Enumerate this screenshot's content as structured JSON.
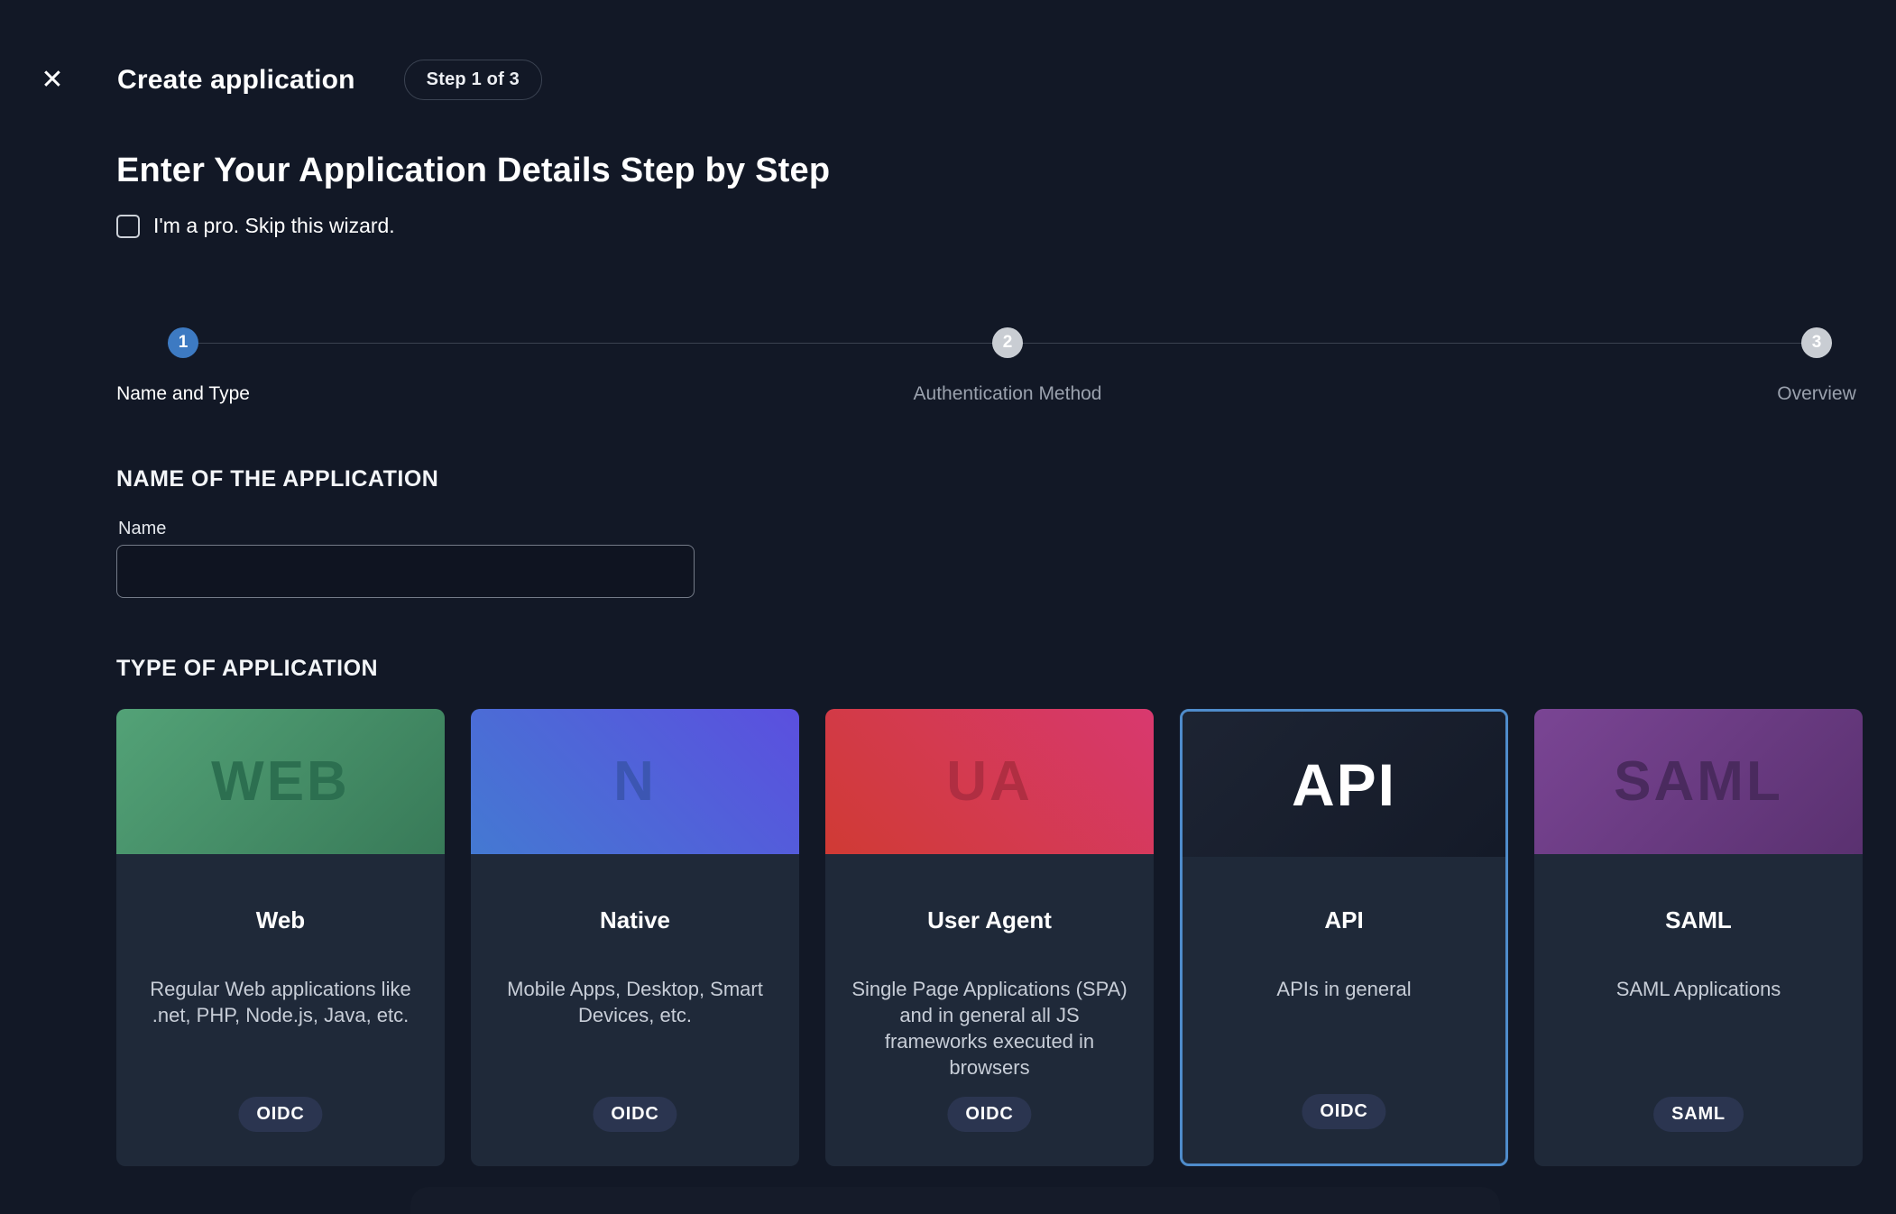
{
  "header": {
    "close_glyph": "✕",
    "title": "Create application",
    "step_badge": "Step 1 of 3"
  },
  "intro": {
    "heading": "Enter Your Application Details Step by Step",
    "skip_label": "I'm a pro. Skip this wizard.",
    "skip_checked": false
  },
  "stepper": {
    "steps": [
      {
        "number": "1",
        "label": "Name and Type",
        "active": true
      },
      {
        "number": "2",
        "label": "Authentication Method",
        "active": false
      },
      {
        "number": "3",
        "label": "Overview",
        "active": false
      }
    ]
  },
  "name_section": {
    "title": "NAME OF THE APPLICATION",
    "field_label": "Name",
    "value": ""
  },
  "type_section": {
    "title": "TYPE OF APPLICATION",
    "cards": [
      {
        "id": "web",
        "monogram": "WEB",
        "monogram_color": "#2c6f50",
        "header_angle": "135deg",
        "header_from": "#53a277",
        "header_to": "#387a58",
        "title": "Web",
        "description": "Regular Web applications like .net, PHP, Node.js, Java, etc.",
        "badge": "OIDC",
        "selected": false
      },
      {
        "id": "native",
        "monogram": "N",
        "monogram_color": "#3c56b2",
        "header_angle": "45deg",
        "header_from": "#4479d2",
        "header_to": "#5b4fdf",
        "title": "Native",
        "description": "Mobile Apps, Desktop, Smart Devices, etc.",
        "badge": "OIDC",
        "selected": false
      },
      {
        "id": "user-agent",
        "monogram": "UA",
        "monogram_color": "#b02e42",
        "header_angle": "45deg",
        "header_from": "#d03a34",
        "header_to": "#d8396f",
        "title": "User Agent",
        "description": "Single Page Applications (SPA) and in general all JS frameworks executed in browsers",
        "badge": "OIDC",
        "selected": false
      },
      {
        "id": "api",
        "monogram": "API",
        "monogram_color": "#ffffff",
        "header_angle": "135deg",
        "header_from": "#1d2433",
        "header_to": "#141a28",
        "title": "API",
        "description": "APIs in general",
        "badge": "OIDC",
        "selected": true
      },
      {
        "id": "saml",
        "monogram": "SAML",
        "monogram_color": "#4a2a5e",
        "header_angle": "135deg",
        "header_from": "#7a4594",
        "header_to": "#5a3170",
        "title": "SAML",
        "description": "SAML Applications",
        "badge": "SAML",
        "selected": false
      }
    ]
  },
  "colors": {
    "page_bg": "#121826",
    "card_bg": "#1f2939",
    "badge_bg": "#2b3550",
    "accent": "#4f8ccb",
    "step_active_bg": "#3d7ac2",
    "step_inactive_bg": "#c9cdd3"
  }
}
